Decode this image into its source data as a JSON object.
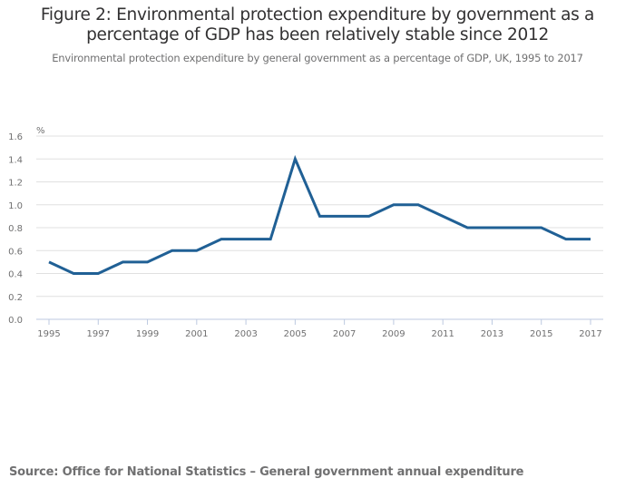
{
  "header": {
    "title_line1": "Figure 2: Environmental protection expenditure by government as a",
    "title_line2": "percentage of GDP has been relatively stable since 2012",
    "subtitle": "Environmental protection expenditure by general government as a percentage of GDP, UK, 1995 to 2017"
  },
  "footer": {
    "source": "Source: Office for National Statistics – General government annual expenditure"
  },
  "colors": {
    "line": "#206095",
    "grid": "#e0e0e0",
    "axis": "#bcc9e0",
    "text": "#707071"
  },
  "chart_data": {
    "type": "line",
    "title": "Figure 2: Environmental protection expenditure by government as a percentage of GDP has been relatively stable since 2012",
    "subtitle": "Environmental protection expenditure by general government as a percentage of GDP, UK, 1995 to 2017",
    "xlabel": "",
    "ylabel": "%",
    "x": [
      1995,
      1996,
      1997,
      1998,
      1999,
      2000,
      2001,
      2002,
      2003,
      2004,
      2005,
      2006,
      2007,
      2008,
      2009,
      2010,
      2011,
      2012,
      2013,
      2014,
      2015,
      2016,
      2017
    ],
    "series": [
      {
        "name": "Environmental protection expenditure (% of GDP)",
        "values": [
          0.5,
          0.4,
          0.4,
          0.5,
          0.5,
          0.6,
          0.6,
          0.7,
          0.7,
          0.7,
          1.4,
          0.9,
          0.9,
          0.9,
          1.0,
          1.0,
          0.9,
          0.8,
          0.8,
          0.8,
          0.8,
          0.7,
          0.7
        ]
      }
    ],
    "xticks": [
      "1995",
      "1997",
      "1999",
      "2001",
      "2003",
      "2005",
      "2007",
      "2009",
      "2011",
      "2013",
      "2015",
      "2017"
    ],
    "yticks": [
      "0.0",
      "0.2",
      "0.4",
      "0.6",
      "0.8",
      "1.0",
      "1.2",
      "1.4",
      "1.6"
    ],
    "ylim": [
      0,
      1.6
    ],
    "xlim": [
      1995,
      2017
    ],
    "grid": true,
    "legend": "none"
  }
}
